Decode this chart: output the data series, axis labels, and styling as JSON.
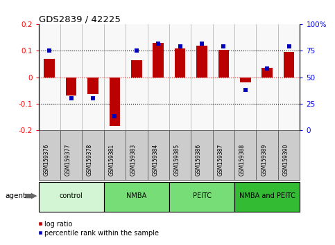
{
  "title": "GDS2839 / 42225",
  "samples": [
    "GSM159376",
    "GSM159377",
    "GSM159378",
    "GSM159381",
    "GSM159383",
    "GSM159384",
    "GSM159385",
    "GSM159386",
    "GSM159387",
    "GSM159388",
    "GSM159389",
    "GSM159390"
  ],
  "log_ratio": [
    0.07,
    -0.07,
    -0.065,
    -0.185,
    0.065,
    0.13,
    0.11,
    0.12,
    0.105,
    -0.02,
    0.035,
    0.095
  ],
  "percentile": [
    75,
    30,
    30,
    13,
    75,
    82,
    79,
    82,
    79,
    38,
    58,
    79
  ],
  "ylim_left": [
    -0.2,
    0.2
  ],
  "ylim_right": [
    0,
    100
  ],
  "yticks_left": [
    -0.2,
    -0.1,
    0.0,
    0.1,
    0.2
  ],
  "yticks_right": [
    0,
    25,
    50,
    75,
    100
  ],
  "bar_color": "#bb0000",
  "dot_color": "#0000bb",
  "groups": [
    {
      "label": "control",
      "start": 0,
      "end": 3,
      "color": "#d4f5d4"
    },
    {
      "label": "NMBA",
      "start": 3,
      "end": 6,
      "color": "#77dd77"
    },
    {
      "label": "PEITC",
      "start": 6,
      "end": 9,
      "color": "#77dd77"
    },
    {
      "label": "NMBA and PEITC",
      "start": 9,
      "end": 12,
      "color": "#33bb33"
    }
  ],
  "legend_bar": "log ratio",
  "legend_dot": "percentile rank within the sample",
  "agent_label": "agent"
}
